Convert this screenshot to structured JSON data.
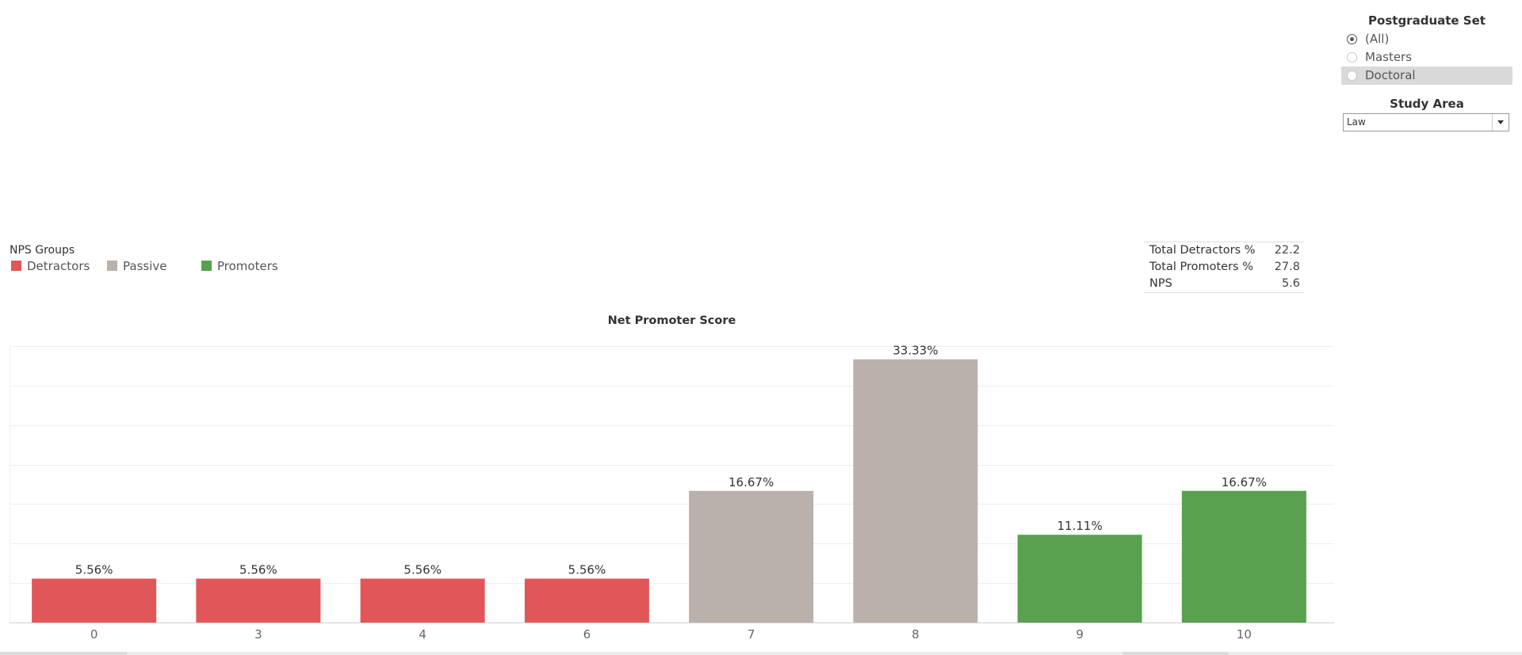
{
  "filters": {
    "postgraduate_set": {
      "title": "Postgraduate Set",
      "options": [
        {
          "label": "(All)",
          "selected": true
        },
        {
          "label": "Masters",
          "selected": false
        },
        {
          "label": "Doctoral",
          "selected": false
        }
      ]
    },
    "study_area": {
      "title": "Study Area",
      "value": "Law"
    }
  },
  "legend": {
    "title": "NPS Groups",
    "items": [
      {
        "label": "Detractors",
        "color": "#e15759"
      },
      {
        "label": "Passive",
        "color": "#bab0ac"
      },
      {
        "label": "Promoters",
        "color": "#59a14f"
      }
    ]
  },
  "summary": {
    "rows": [
      {
        "label": "Total Detractors %",
        "value": "22.2"
      },
      {
        "label": "Total Promoters %",
        "value": "27.8"
      },
      {
        "label": "NPS",
        "value": "5.6"
      }
    ]
  },
  "chart_data": {
    "type": "bar",
    "title": "Net Promoter Score",
    "categories": [
      "0",
      "3",
      "4",
      "6",
      "7",
      "8",
      "9",
      "10"
    ],
    "values": [
      5.56,
      5.56,
      5.56,
      5.56,
      16.67,
      33.33,
      11.11,
      16.67
    ],
    "value_labels": [
      "5.56%",
      "5.56%",
      "5.56%",
      "5.56%",
      "16.67%",
      "33.33%",
      "11.11%",
      "16.67%"
    ],
    "groups": [
      "Detractors",
      "Detractors",
      "Detractors",
      "Detractors",
      "Passive",
      "Passive",
      "Promoters",
      "Promoters"
    ],
    "colors": {
      "Detractors": "#e15759",
      "Passive": "#bab0ac",
      "Promoters": "#59a14f"
    },
    "ylim": [
      0,
      35
    ],
    "grid": true,
    "xlabel": "",
    "ylabel": ""
  }
}
